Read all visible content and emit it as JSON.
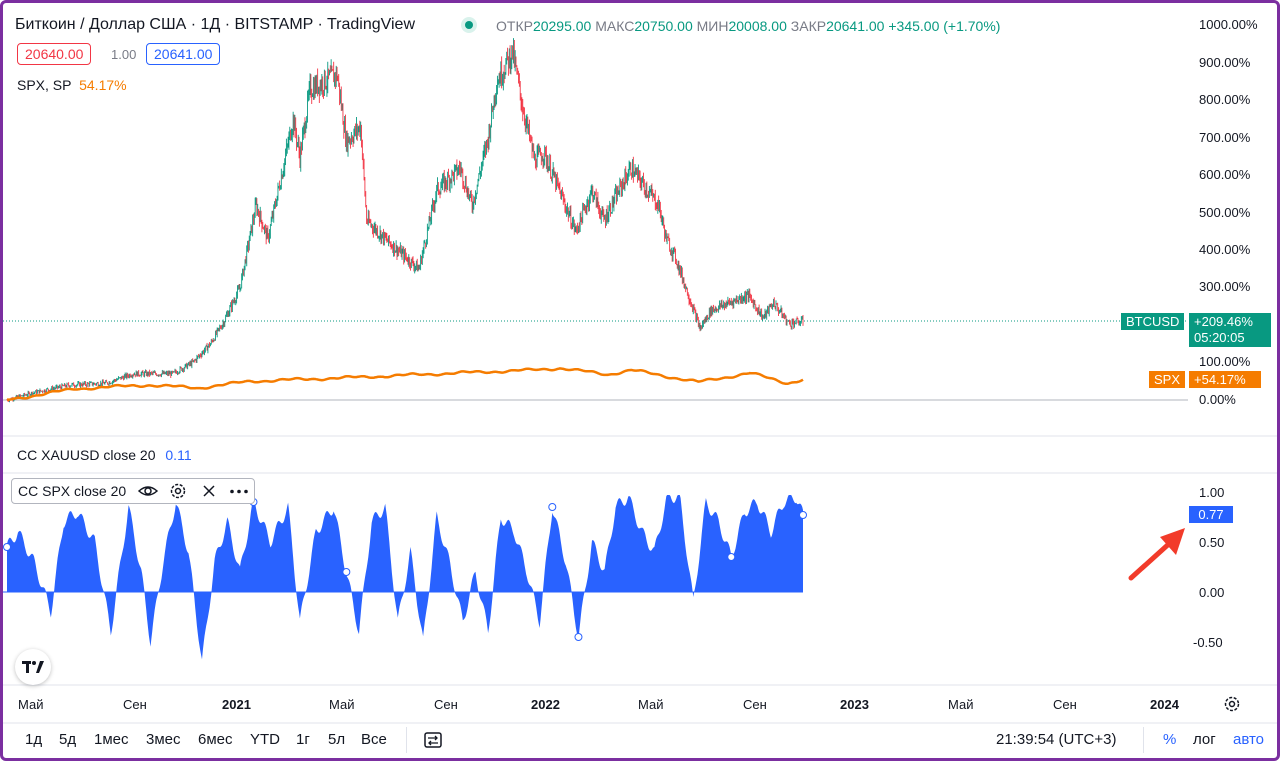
{
  "header": {
    "symbol_title": "Биткоин / Доллар США · 1Д · BITSTAMP · TradingView",
    "ohlc": [
      {
        "label": "ОТКР",
        "value": "20295.00"
      },
      {
        "label": "МАКС",
        "value": "20750.00"
      },
      {
        "label": "МИН",
        "value": "20008.00"
      },
      {
        "label": "ЗАКР",
        "value": "20641.00"
      }
    ],
    "change": "+345.00 (+1.70%)",
    "bid": "20640.00",
    "spread": "1.00",
    "ask": "20641.00",
    "compare_symbol": "SPX, SP",
    "compare_value": "54.17%"
  },
  "price_axis": {
    "ticks": [
      "1000.00%",
      "900.00%",
      "800.00%",
      "700.00%",
      "600.00%",
      "500.00%",
      "400.00%",
      "300.00%",
      "100.00%",
      "0.00%"
    ],
    "btc_tag": {
      "name": "BTCUSD",
      "value": "+209.46%",
      "countdown": "05:20:05"
    },
    "spx_tag": {
      "name": "SPX",
      "value": "+54.17%"
    }
  },
  "indicators": {
    "cc_xau": {
      "label": "CC XAUUSD close 20",
      "value": "0.11"
    },
    "cc_spx": {
      "label": "CC SPX close 20",
      "value": "0.77"
    },
    "ticks": [
      "1.00",
      "0.50",
      "0.00",
      "-0.50"
    ]
  },
  "time_axis": [
    "Май",
    "Сен",
    "2021",
    "Май",
    "Сен",
    "2022",
    "Май",
    "Сен",
    "2023",
    "Май",
    "Сен",
    "2024"
  ],
  "toolbar": {
    "ranges": [
      "1д",
      "5д",
      "1мес",
      "3мес",
      "6мес",
      "YTD",
      "1г",
      "5л",
      "Все"
    ],
    "time": "21:39:54 (UTC+3)",
    "percent": "%",
    "log": "лог",
    "auto": "авто"
  },
  "colors": {
    "up": "#089981",
    "down": "#f23645",
    "spx": "#f57c00",
    "cc": "#2962ff",
    "arrow": "#f23b2a",
    "border": "#7b2fa0"
  },
  "chart_data": [
    {
      "type": "line",
      "title": "Биткоин / Доллар США · 1Д · BITSTAMP",
      "y_unit": "%",
      "ylim": [
        0,
        1000
      ],
      "x_range": [
        "2020-03-19",
        "2022-10-18"
      ],
      "series": [
        {
          "name": "BTCUSD",
          "x": [
            "2020-03-19",
            "2020-04-20",
            "2020-06-01",
            "2020-07-15",
            "2020-08-15",
            "2020-10-01",
            "2020-10-25",
            "2020-11-15",
            "2020-12-01",
            "2020-12-20",
            "2021-01-08",
            "2021-01-22",
            "2021-02-10",
            "2021-02-21",
            "2021-03-01",
            "2021-03-13",
            "2021-04-14",
            "2021-04-25",
            "2021-05-12",
            "2021-05-19",
            "2021-06-10",
            "2021-07-20",
            "2021-08-10",
            "2021-09-07",
            "2021-09-21",
            "2021-10-10",
            "2021-10-20",
            "2021-11-08",
            "2021-11-20",
            "2021-12-04",
            "2021-12-15",
            "2022-01-22",
            "2022-02-10",
            "2022-02-24",
            "2022-03-28",
            "2022-04-30",
            "2022-05-09",
            "2022-05-20",
            "2022-06-18",
            "2022-07-01",
            "2022-08-14",
            "2022-09-01",
            "2022-09-13",
            "2022-10-01",
            "2022-10-18"
          ],
          "values": [
            0,
            20,
            40,
            45,
            70,
            70,
            100,
            150,
            210,
            300,
            520,
            430,
            630,
            750,
            650,
            830,
            870,
            690,
            730,
            480,
            430,
            350,
            560,
            620,
            520,
            700,
            850,
            930,
            780,
            640,
            660,
            450,
            560,
            480,
            620,
            520,
            430,
            380,
            190,
            240,
            280,
            220,
            260,
            205,
            209.46
          ]
        },
        {
          "name": "SPX",
          "x": [
            "2020-03-19",
            "2020-06-08",
            "2020-09-02",
            "2020-11-01",
            "2021-01-01",
            "2021-05-01",
            "2021-09-02",
            "2021-12-01",
            "2022-01-03",
            "2022-03-01",
            "2022-03-29",
            "2022-06-16",
            "2022-08-16",
            "2022-09-30",
            "2022-10-18"
          ],
          "values": [
            0,
            30,
            40,
            32,
            50,
            60,
            72,
            80,
            85,
            68,
            80,
            48,
            72,
            45,
            54.17
          ]
        }
      ]
    },
    {
      "type": "area",
      "title": "CC SPX close 20",
      "ylim": [
        -0.8,
        1.0
      ],
      "x_range": [
        "2020-03-19",
        "2022-10-18"
      ],
      "series": [
        {
          "name": "CC SPX close 20",
          "x": [
            "2020-03-19",
            "2020-04-01",
            "2020-04-20",
            "2020-05-10",
            "2020-05-25",
            "2020-06-10",
            "2020-07-01",
            "2020-07-20",
            "2020-08-10",
            "2020-08-25",
            "2020-09-05",
            "2020-09-20",
            "2020-10-05",
            "2020-10-20",
            "2020-11-05",
            "2020-11-20",
            "2020-12-05",
            "2020-12-20",
            "2021-01-05",
            "2021-01-25",
            "2021-02-15",
            "2021-03-01",
            "2021-03-20",
            "2021-04-10",
            "2021-04-25",
            "2021-05-10",
            "2021-05-25",
            "2021-06-10",
            "2021-06-25",
            "2021-07-10",
            "2021-07-25",
            "2021-08-10",
            "2021-08-25",
            "2021-09-10",
            "2021-09-25",
            "2021-10-10",
            "2021-10-25",
            "2021-11-10",
            "2021-11-25",
            "2021-12-10",
            "2021-12-25",
            "2022-01-10",
            "2022-01-25",
            "2022-02-10",
            "2022-02-25",
            "2022-03-10",
            "2022-03-25",
            "2022-04-10",
            "2022-04-25",
            "2022-05-10",
            "2022-05-25",
            "2022-06-10",
            "2022-06-25",
            "2022-07-10",
            "2022-07-25",
            "2022-08-10",
            "2022-08-25",
            "2022-09-10",
            "2022-09-25",
            "2022-10-10",
            "2022-10-18"
          ],
          "values": [
            0.45,
            0.6,
            0.3,
            -0.2,
            0.7,
            0.8,
            0.5,
            -0.4,
            0.85,
            0.2,
            -0.5,
            0.3,
            0.9,
            0.4,
            -0.7,
            0.3,
            0.7,
            0.2,
            0.9,
            0.5,
            0.85,
            -0.3,
            0.6,
            0.85,
            0.2,
            -0.4,
            0.7,
            0.85,
            -0.3,
            0.4,
            -0.5,
            0.75,
            0.3,
            -0.3,
            0.2,
            -0.4,
            0.75,
            0.6,
            0.2,
            -0.3,
            0.85,
            0.3,
            -0.45,
            0.5,
            0.2,
            0.85,
            0.95,
            0.6,
            0.4,
            0.95,
            0.95,
            -0.1,
            0.9,
            0.7,
            0.35,
            0.8,
            0.9,
            0.6,
            0.9,
            0.95,
            0.77
          ]
        }
      ]
    }
  ]
}
